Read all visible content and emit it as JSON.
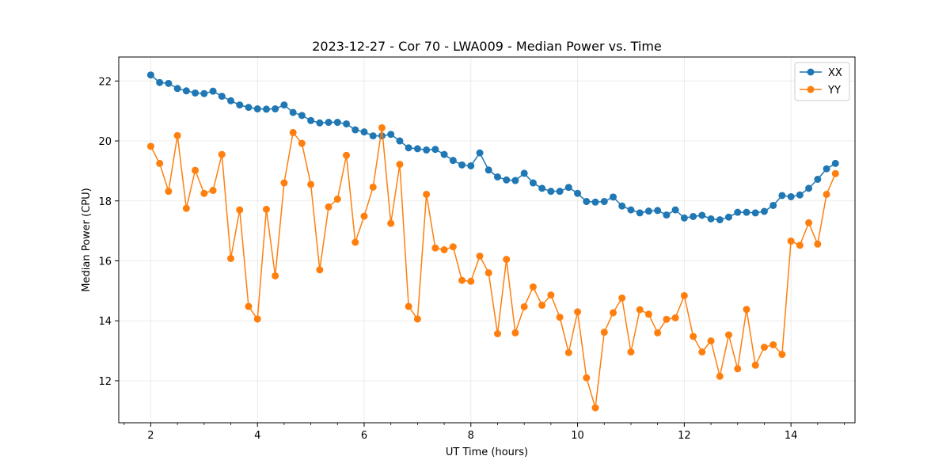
{
  "chart_data": {
    "type": "line",
    "title": "2023-12-27 - Cor 70 - LWA009 - Median Power vs. Time",
    "xlabel": "UT Time (hours)",
    "ylabel": "Median Power (CPU)",
    "xlim": [
      1.4,
      15.2
    ],
    "ylim": [
      10.6,
      22.8
    ],
    "xticks": [
      2,
      4,
      6,
      8,
      10,
      12,
      14
    ],
    "yticks": [
      12,
      14,
      16,
      18,
      20,
      22
    ],
    "xtick_labels": [
      "2",
      "4",
      "6",
      "8",
      "10",
      "12",
      "14"
    ],
    "ytick_labels": [
      "12",
      "14",
      "16",
      "18",
      "20",
      "22"
    ],
    "grid": true,
    "legend_position": "top-right",
    "x": [
      2.0,
      2.167,
      2.333,
      2.5,
      2.667,
      2.833,
      3.0,
      3.167,
      3.333,
      3.5,
      3.667,
      3.833,
      4.0,
      4.167,
      4.333,
      4.5,
      4.667,
      4.833,
      5.0,
      5.167,
      5.333,
      5.5,
      5.667,
      5.833,
      6.0,
      6.167,
      6.333,
      6.5,
      6.667,
      6.833,
      7.0,
      7.167,
      7.333,
      7.5,
      7.667,
      7.833,
      8.0,
      8.167,
      8.333,
      8.5,
      8.667,
      8.833,
      9.0,
      9.167,
      9.333,
      9.5,
      9.667,
      9.833,
      10.0,
      10.167,
      10.333,
      10.5,
      10.667,
      10.833,
      11.0,
      11.167,
      11.333,
      11.5,
      11.667,
      11.833,
      12.0,
      12.167,
      12.333,
      12.5,
      12.667,
      12.833,
      13.0,
      13.167,
      13.333,
      13.5,
      13.667,
      13.833,
      14.0,
      14.167,
      14.333,
      14.5,
      14.667,
      14.833
    ],
    "series": [
      {
        "name": "XX",
        "color": "#1f77b4",
        "values": [
          22.2,
          21.95,
          21.92,
          21.75,
          21.67,
          21.6,
          21.58,
          21.66,
          21.49,
          21.34,
          21.2,
          21.12,
          21.07,
          21.06,
          21.07,
          21.2,
          20.95,
          20.85,
          20.68,
          20.6,
          20.62,
          20.62,
          20.57,
          20.37,
          20.3,
          20.17,
          20.17,
          20.22,
          20.0,
          19.77,
          19.74,
          19.7,
          19.72,
          19.55,
          19.35,
          19.2,
          19.17,
          19.6,
          19.03,
          18.8,
          18.7,
          18.68,
          18.92,
          18.6,
          18.42,
          18.32,
          18.32,
          18.45,
          18.25,
          17.98,
          17.96,
          17.98,
          18.13,
          17.83,
          17.7,
          17.6,
          17.66,
          17.68,
          17.53,
          17.7,
          17.43,
          17.48,
          17.52,
          17.4,
          17.37,
          17.46,
          17.62,
          17.62,
          17.6,
          17.65,
          17.85,
          18.18,
          18.14,
          18.2,
          18.42,
          18.72,
          19.07,
          19.25
        ]
      },
      {
        "name": "YY",
        "color": "#ff7f0e",
        "values": [
          19.82,
          19.25,
          18.32,
          20.18,
          17.75,
          19.02,
          18.25,
          18.35,
          19.55,
          16.08,
          17.7,
          14.48,
          14.06,
          17.72,
          15.5,
          18.6,
          20.28,
          19.92,
          18.55,
          15.7,
          17.8,
          18.06,
          19.52,
          16.62,
          17.49,
          18.46,
          20.44,
          17.25,
          19.22,
          14.48,
          14.06,
          18.22,
          16.43,
          16.37,
          16.47,
          15.35,
          15.32,
          16.16,
          15.6,
          13.57,
          16.05,
          13.6,
          14.47,
          15.13,
          14.52,
          14.86,
          14.12,
          12.94,
          14.3,
          12.1,
          11.1,
          13.62,
          14.27,
          14.76,
          12.96,
          14.37,
          14.22,
          13.6,
          14.05,
          14.1,
          14.84,
          13.48,
          12.96,
          13.33,
          12.15,
          13.53,
          12.4,
          14.38,
          12.52,
          13.12,
          13.2,
          12.88,
          16.66,
          16.52,
          17.27,
          16.56,
          18.22,
          18.91
        ]
      }
    ]
  }
}
